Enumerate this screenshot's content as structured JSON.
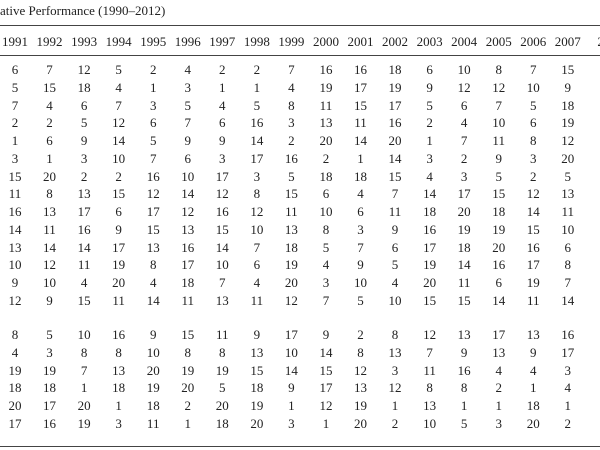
{
  "title": "ative Performance (1990–2012)",
  "table": {
    "columns": [
      "1991",
      "1992",
      "1993",
      "1994",
      "1995",
      "1996",
      "1997",
      "1998",
      "1999",
      "2000",
      "2001",
      "2002",
      "2003",
      "2004",
      "2005",
      "2006",
      "2007",
      "2"
    ],
    "groups": [
      [
        [
          6,
          7,
          12,
          5,
          2,
          4,
          2,
          2,
          7,
          16,
          16,
          18,
          6,
          10,
          8,
          7,
          15
        ],
        [
          5,
          15,
          18,
          4,
          1,
          3,
          1,
          1,
          4,
          19,
          17,
          19,
          9,
          12,
          12,
          10,
          9
        ],
        [
          7,
          4,
          6,
          7,
          3,
          5,
          4,
          5,
          8,
          11,
          15,
          17,
          5,
          6,
          7,
          5,
          18
        ],
        [
          2,
          2,
          5,
          12,
          6,
          7,
          6,
          16,
          3,
          13,
          11,
          16,
          2,
          4,
          10,
          6,
          19
        ],
        [
          1,
          6,
          9,
          14,
          5,
          9,
          9,
          14,
          2,
          20,
          14,
          20,
          1,
          7,
          11,
          8,
          12
        ],
        [
          3,
          1,
          3,
          10,
          7,
          6,
          3,
          17,
          16,
          2,
          1,
          14,
          3,
          2,
          9,
          3,
          20
        ],
        [
          15,
          20,
          2,
          2,
          16,
          10,
          17,
          3,
          5,
          18,
          18,
          15,
          4,
          3,
          5,
          2,
          5
        ],
        [
          11,
          8,
          13,
          15,
          12,
          14,
          12,
          8,
          15,
          6,
          4,
          7,
          14,
          17,
          15,
          12,
          13
        ],
        [
          16,
          13,
          17,
          6,
          17,
          12,
          16,
          12,
          11,
          10,
          6,
          11,
          18,
          20,
          18,
          14,
          11
        ],
        [
          14,
          11,
          16,
          9,
          15,
          13,
          15,
          10,
          13,
          8,
          3,
          9,
          16,
          19,
          19,
          15,
          10
        ],
        [
          13,
          14,
          14,
          17,
          13,
          16,
          14,
          7,
          18,
          5,
          7,
          6,
          17,
          18,
          20,
          16,
          6
        ],
        [
          10,
          12,
          11,
          19,
          8,
          17,
          10,
          6,
          19,
          4,
          9,
          5,
          19,
          14,
          16,
          17,
          8
        ],
        [
          9,
          10,
          4,
          20,
          4,
          18,
          7,
          4,
          20,
          3,
          10,
          4,
          20,
          11,
          6,
          19,
          7
        ],
        [
          12,
          9,
          15,
          11,
          14,
          11,
          13,
          11,
          12,
          7,
          5,
          10,
          15,
          15,
          14,
          11,
          14
        ]
      ],
      [
        [
          8,
          5,
          10,
          16,
          9,
          15,
          11,
          9,
          17,
          9,
          2,
          8,
          12,
          13,
          17,
          13,
          16
        ],
        [
          4,
          3,
          8,
          8,
          10,
          8,
          8,
          13,
          10,
          14,
          8,
          13,
          7,
          9,
          13,
          9,
          17
        ],
        [
          19,
          19,
          7,
          13,
          20,
          19,
          19,
          15,
          14,
          15,
          12,
          3,
          11,
          16,
          4,
          4,
          3
        ],
        [
          18,
          18,
          1,
          18,
          19,
          20,
          5,
          18,
          9,
          17,
          13,
          12,
          8,
          8,
          2,
          1,
          4
        ],
        [
          20,
          17,
          20,
          1,
          18,
          2,
          20,
          19,
          1,
          12,
          19,
          1,
          13,
          1,
          1,
          18,
          1
        ],
        [
          17,
          16,
          19,
          3,
          11,
          1,
          18,
          20,
          3,
          1,
          20,
          2,
          10,
          5,
          3,
          20,
          2
        ]
      ]
    ]
  }
}
